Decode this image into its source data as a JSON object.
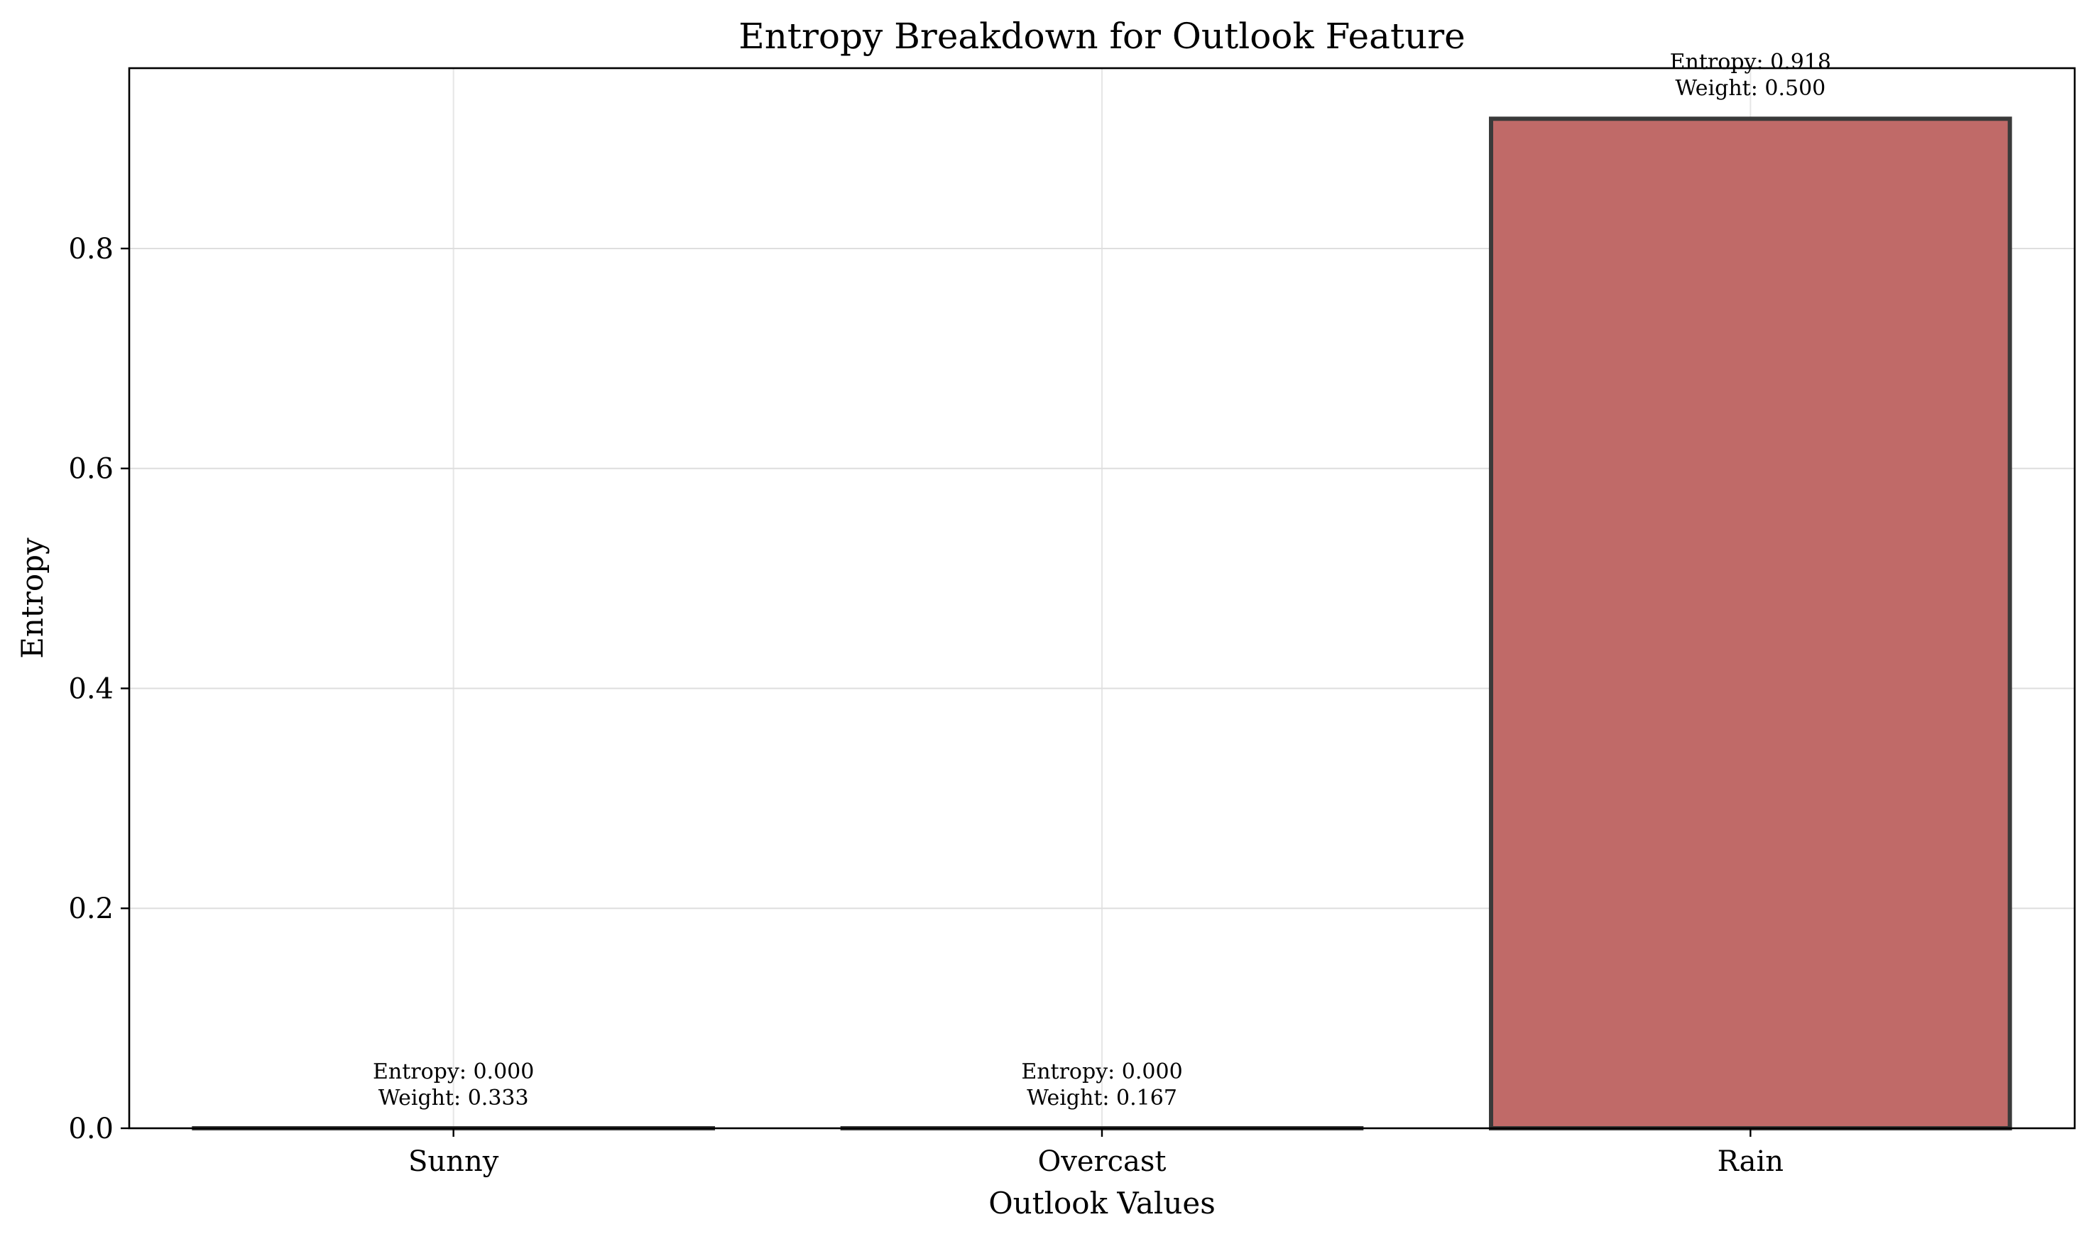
{
  "chart_data": {
    "type": "bar",
    "title": "Entropy Breakdown for Outlook Feature",
    "xlabel": "Outlook Values",
    "ylabel": "Entropy",
    "categories": [
      "Sunny",
      "Overcast",
      "Rain"
    ],
    "values": [
      0.0,
      0.0,
      0.918
    ],
    "weights": [
      0.333,
      0.167,
      0.5
    ],
    "bar_labels": [
      [
        "Entropy: 0.000",
        "Weight: 0.333"
      ],
      [
        "Entropy: 0.000",
        "Weight: 0.167"
      ],
      [
        "Entropy: 0.918",
        "Weight: 0.500"
      ]
    ],
    "ylim": [
      0,
      0.964
    ],
    "yticks": [
      0.0,
      0.2,
      0.4,
      0.6,
      0.8
    ],
    "ytick_labels": [
      "0.0",
      "0.2",
      "0.4",
      "0.6",
      "0.8"
    ],
    "grid": true,
    "legend": "none",
    "colors": {
      "bar_fill": "#c06a68",
      "bar_edge": "#3a3a3a",
      "grid": "#dedede",
      "axis": "#000000"
    }
  }
}
